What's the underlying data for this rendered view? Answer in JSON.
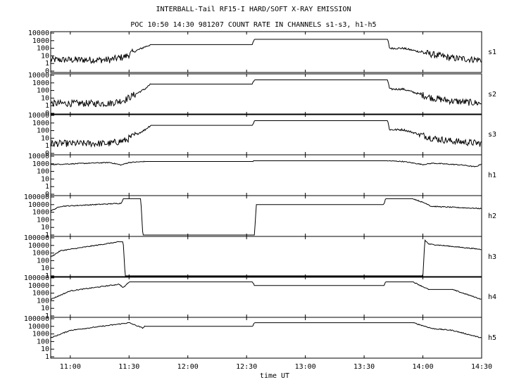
{
  "header": {
    "title": "INTERBALL-Tail RF15-I HARD/SOFT X-RAY EMISSION",
    "subtitle": "POC 10:50 14:30 981207  COUNT RATE IN CHANNELS s1-s3, h1-h5"
  },
  "chart_data": {
    "type": "line",
    "x_axis": {
      "label": "time UT",
      "range": [
        "10:50",
        "14:30"
      ],
      "ticks": [
        "11:00",
        "11:30",
        "12:00",
        "12:30",
        "13:00",
        "13:30",
        "14:00",
        "14:30"
      ]
    },
    "y_scale": "log",
    "grid": false,
    "panels": [
      {
        "name": "s1",
        "y_ticks": [
          "10000",
          "1000",
          "100",
          "10",
          "1",
          "0"
        ],
        "x": [
          "10:50",
          "11:20",
          "11:28",
          "11:33",
          "11:38",
          "11:41",
          "12:33",
          "12:34",
          "13:42",
          "13:43",
          "13:50",
          "14:05",
          "14:15",
          "14:30"
        ],
        "values": [
          3,
          3,
          8,
          40,
          150,
          300,
          300,
          1500,
          1500,
          100,
          100,
          15,
          5,
          3
        ]
      },
      {
        "name": "s2",
        "y_ticks": [
          "10000",
          "1000",
          "100",
          "10",
          "1",
          "0"
        ],
        "x": [
          "10:50",
          "11:20",
          "11:28",
          "11:33",
          "11:38",
          "11:41",
          "12:33",
          "12:34",
          "13:42",
          "13:43",
          "13:50",
          "14:05",
          "14:15",
          "14:30"
        ],
        "values": [
          2,
          2,
          6,
          30,
          150,
          700,
          700,
          2500,
          2500,
          150,
          150,
          10,
          4,
          2
        ]
      },
      {
        "name": "s3",
        "y_ticks": [
          "10000",
          "1000",
          "100",
          "10",
          "1",
          "0"
        ],
        "x": [
          "10:50",
          "11:20",
          "11:28",
          "11:33",
          "11:38",
          "11:41",
          "12:33",
          "12:34",
          "13:42",
          "13:43",
          "13:50",
          "14:05",
          "14:15",
          "14:30"
        ],
        "values": [
          2,
          2,
          5,
          25,
          120,
          500,
          500,
          2000,
          2000,
          130,
          130,
          10,
          4,
          2
        ]
      },
      {
        "name": "h1",
        "y_ticks": [
          "10000",
          "1000",
          "100",
          "10",
          "1",
          "0"
        ],
        "x": [
          "10:50",
          "11:20",
          "11:26",
          "11:30",
          "11:38",
          "12:33",
          "12:34",
          "13:42",
          "13:50",
          "14:00",
          "14:05",
          "14:20",
          "14:27",
          "14:30"
        ],
        "values": [
          800,
          1500,
          700,
          1500,
          2000,
          2000,
          2500,
          2500,
          2000,
          800,
          1200,
          700,
          400,
          1000
        ]
      },
      {
        "name": "h2",
        "y_ticks": [
          "100000",
          "10000",
          "1000",
          "100",
          "10",
          "1"
        ],
        "x": [
          "10:50",
          "10:55",
          "11:26",
          "11:27",
          "11:36",
          "11:37",
          "12:34",
          "12:35",
          "13:40",
          "13:41",
          "13:55",
          "14:03",
          "14:04",
          "14:30"
        ],
        "values": [
          1500,
          6000,
          15000,
          60000,
          60000,
          1,
          1,
          10000,
          10000,
          60000,
          60000,
          10000,
          6000,
          3000
        ]
      },
      {
        "name": "h3",
        "y_ticks": [
          "100000",
          "10000",
          "1000",
          "100",
          "10",
          "1"
        ],
        "x": [
          "10:50",
          "10:55",
          "11:25",
          "11:27",
          "11:28",
          "14:00",
          "14:01",
          "14:03",
          "14:30"
        ],
        "values": [
          300,
          2000,
          30000,
          30000,
          1,
          1,
          50000,
          15000,
          3000
        ]
      },
      {
        "name": "h4",
        "y_ticks": [
          "100000",
          "10000",
          "1000",
          "100",
          "10",
          "1"
        ],
        "x": [
          "10:50",
          "11:00",
          "11:25",
          "11:27",
          "11:30",
          "12:33",
          "12:34",
          "13:40",
          "13:41",
          "13:55",
          "14:03",
          "14:15",
          "14:30"
        ],
        "values": [
          150,
          2000,
          15000,
          5000,
          30000,
          30000,
          10000,
          10000,
          30000,
          30000,
          3000,
          3000,
          150
        ]
      },
      {
        "name": "h5",
        "y_ticks": [
          "100000",
          "10000",
          "1000",
          "100",
          "10",
          "1"
        ],
        "x": [
          "10:50",
          "11:00",
          "11:25",
          "11:30",
          "11:37",
          "11:38",
          "12:33",
          "12:34",
          "13:55",
          "14:05",
          "14:15",
          "14:30"
        ],
        "values": [
          300,
          3000,
          20000,
          30000,
          6000,
          10000,
          10000,
          30000,
          30000,
          5000,
          3000,
          300
        ]
      }
    ]
  }
}
